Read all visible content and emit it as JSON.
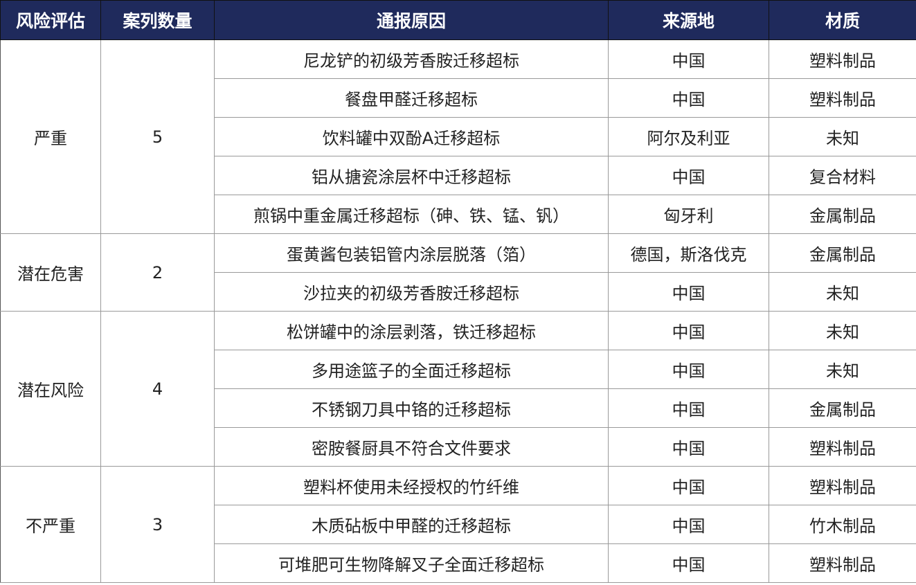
{
  "header_color": "#1f2a5c",
  "headers": [
    "风险评估",
    "案列数量",
    "通报原因",
    "来源地",
    "材质"
  ],
  "groups": [
    {
      "risk": "严重",
      "count": "5",
      "rows": [
        {
          "reason": "尼龙铲的初级芳香胺迁移超标",
          "origin": "中国",
          "material": "塑料制品"
        },
        {
          "reason": "餐盘甲醛迁移超标",
          "origin": "中国",
          "material": "塑料制品"
        },
        {
          "reason": "饮料罐中双酚A迁移超标",
          "origin": "阿尔及利亚",
          "material": "未知"
        },
        {
          "reason": "铝从搪瓷涂层杯中迁移超标",
          "origin": "中国",
          "material": "复合材料"
        },
        {
          "reason": "煎锅中重金属迁移超标（砷、铁、锰、钒）",
          "origin": "匈牙利",
          "material": "金属制品"
        }
      ]
    },
    {
      "risk": "潜在危害",
      "count": "2",
      "rows": [
        {
          "reason": "蛋黄酱包装铝管内涂层脱落（箔）",
          "origin": "德国，斯洛伐克",
          "material": "金属制品"
        },
        {
          "reason": "沙拉夹的初级芳香胺迁移超标",
          "origin": "中国",
          "material": "未知"
        }
      ]
    },
    {
      "risk": "潜在风险",
      "count": "4",
      "rows": [
        {
          "reason": "松饼罐中的涂层剥落，铁迁移超标",
          "origin": "中国",
          "material": "未知"
        },
        {
          "reason": "多用途篮子的全面迁移超标",
          "origin": "中国",
          "material": "未知"
        },
        {
          "reason": "不锈钢刀具中铬的迁移超标",
          "origin": "中国",
          "material": "金属制品"
        },
        {
          "reason": "密胺餐厨具不符合文件要求",
          "origin": "中国",
          "material": "塑料制品"
        }
      ]
    },
    {
      "risk": "不严重",
      "count": "3",
      "rows": [
        {
          "reason": "塑料杯使用未经授权的竹纤维",
          "origin": "中国",
          "material": "塑料制品"
        },
        {
          "reason": "木质砧板中甲醛的迁移超标",
          "origin": "中国",
          "material": "竹木制品"
        },
        {
          "reason": "可堆肥可生物降解叉子全面迁移超标",
          "origin": "中国",
          "material": "塑料制品"
        }
      ]
    }
  ]
}
